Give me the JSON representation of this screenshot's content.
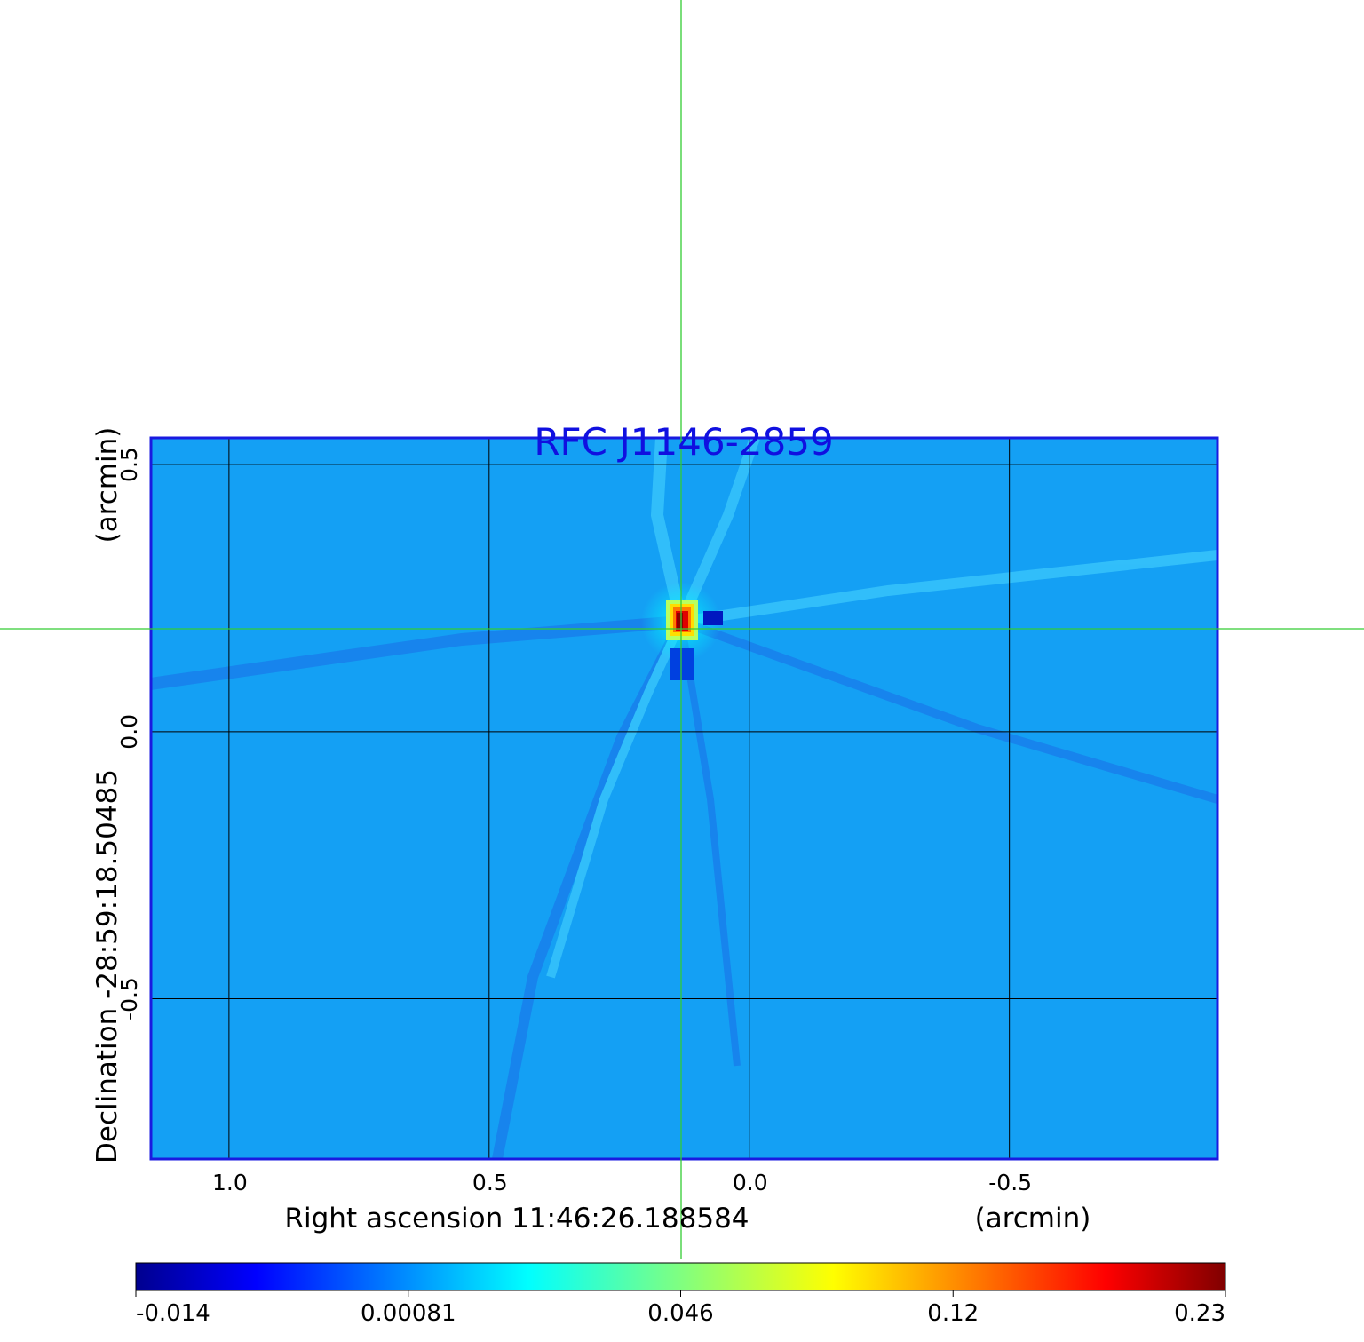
{
  "chart_data": {
    "type": "heatmap",
    "title": "RFC J1146-2859",
    "xlabel": "Right ascension  11:46:26.188584",
    "xunit": "(arcmin)",
    "ylabel": "Declination  -28:59:18.50485",
    "yunit": "(arcmin)",
    "xlim": [
      1.15,
      -0.9
    ],
    "ylim": [
      -0.8,
      0.55
    ],
    "x_ticks": [
      {
        "value": 1.0,
        "label": "1.0"
      },
      {
        "value": 0.5,
        "label": "0.5"
      },
      {
        "value": 0.0,
        "label": "0.0"
      },
      {
        "value": -0.5,
        "label": "-0.5"
      }
    ],
    "y_ticks": [
      {
        "value": 0.5,
        "label": "0.5"
      },
      {
        "value": 0.0,
        "label": "0.0"
      },
      {
        "value": -0.5,
        "label": "-0.5"
      }
    ],
    "grid": true,
    "crosshair": {
      "x": 0.135,
      "y": 0.19
    },
    "source_peak": {
      "x": 0.135,
      "y": 0.2,
      "value": 0.23
    },
    "colorbar": {
      "orientation": "horizontal",
      "colormap": "jet",
      "ticks": [
        "-0.014",
        "0.00081",
        "0.046",
        "0.12",
        "0.23"
      ],
      "min": -0.014,
      "max": 0.23
    },
    "colors": {
      "title": "#1010e0",
      "frame": "#1a1ae0",
      "crosshair": "#33cc33",
      "background_map": "#14a0f4"
    }
  }
}
